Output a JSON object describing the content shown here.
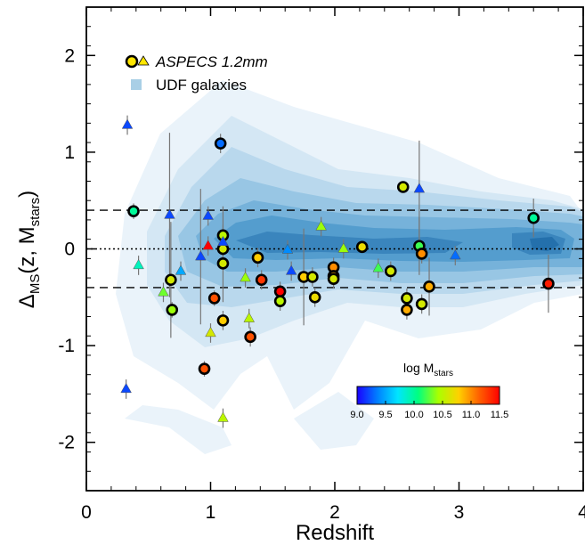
{
  "chart_data": {
    "type": "scatter",
    "xlabel": "Redshift",
    "ylabel_main": "Δ",
    "ylabel_sub": "MS",
    "ylabel_rest": "(z, M",
    "ylabel_sub2": "stars",
    "ylabel_end": ")",
    "xlim": [
      0,
      4
    ],
    "ylim": [
      -2.5,
      2.5
    ],
    "xticks": [
      0,
      1,
      2,
      3,
      4
    ],
    "xtick_labels": [
      "0",
      "1",
      "2",
      "3",
      "4"
    ],
    "yticks": [
      -2,
      -1,
      0,
      1,
      2
    ],
    "ytick_labels": [
      "-2",
      "-1",
      "0",
      "1",
      "2"
    ],
    "hlines": {
      "dotted": [
        0.0
      ],
      "dashed": [
        0.4,
        -0.4
      ]
    },
    "legend": {
      "placement": "top-left",
      "entries": [
        {
          "label": "ASPECS 1.2mm",
          "marker": "circle+triangle"
        },
        {
          "label": "UDF galaxies",
          "marker": "square",
          "color": "#a9cfe6"
        }
      ]
    },
    "colorbar": {
      "title_main": "log M",
      "title_sub": "stars",
      "min": 9.0,
      "max": 11.5,
      "tick_labels": [
        "9.0",
        "9.5",
        "10.0",
        "10.5",
        "11.0",
        "11.5"
      ],
      "colors": [
        "#1a00ff",
        "#0080ff",
        "#00e5ff",
        "#00ff80",
        "#aaff00",
        "#ffd000",
        "#ff6000",
        "#ff0000"
      ]
    },
    "series": [
      {
        "name": "ASPECS 1.2mm",
        "marker": "circle",
        "points": [
          {
            "x": 0.38,
            "y": 0.39,
            "m": 10.0,
            "err": 0.08
          },
          {
            "x": 0.68,
            "y": -0.32,
            "m": 10.6,
            "err": 0.6
          },
          {
            "x": 0.69,
            "y": -0.63,
            "m": 10.4,
            "err": 0.08
          },
          {
            "x": 0.95,
            "y": -1.24,
            "m": 11.2,
            "err": 0.08
          },
          {
            "x": 1.03,
            "y": -0.51,
            "m": 11.2,
            "err": 0.08
          },
          {
            "x": 1.08,
            "y": 1.09,
            "m": 9.3,
            "err": 0.1
          },
          {
            "x": 1.1,
            "y": 0.14,
            "m": 10.5,
            "err": 0.3
          },
          {
            "x": 1.1,
            "y": 0.0,
            "m": 10.6,
            "err": 0.1
          },
          {
            "x": 1.1,
            "y": -0.15,
            "m": 10.6,
            "err": 0.4
          },
          {
            "x": 1.1,
            "y": -0.74,
            "m": 10.8,
            "err": 0.1
          },
          {
            "x": 1.32,
            "y": -0.91,
            "m": 11.2,
            "err": 0.1
          },
          {
            "x": 1.38,
            "y": -0.09,
            "m": 10.8,
            "err": 0.1
          },
          {
            "x": 1.41,
            "y": -0.32,
            "m": 11.3,
            "err": 0.1
          },
          {
            "x": 1.56,
            "y": -0.44,
            "m": 11.5,
            "err": 0.1
          },
          {
            "x": 1.56,
            "y": -0.54,
            "m": 10.5,
            "err": 0.1
          },
          {
            "x": 1.75,
            "y": -0.29,
            "m": 10.8,
            "err": 0.5
          },
          {
            "x": 1.82,
            "y": -0.29,
            "m": 10.6,
            "err": 0.1
          },
          {
            "x": 1.84,
            "y": -0.5,
            "m": 10.7,
            "err": 0.1
          },
          {
            "x": 1.99,
            "y": -0.19,
            "m": 11.0,
            "err": 0.1
          },
          {
            "x": 1.99,
            "y": -0.28,
            "m": 10.9,
            "err": 0.1
          },
          {
            "x": 1.99,
            "y": -0.31,
            "m": 10.6,
            "err": 0.1
          },
          {
            "x": 2.22,
            "y": 0.02,
            "m": 10.7,
            "err": 0.05
          },
          {
            "x": 2.45,
            "y": -0.23,
            "m": 10.6,
            "err": 0.1
          },
          {
            "x": 2.55,
            "y": 0.64,
            "m": 10.6,
            "err": 0.05
          },
          {
            "x": 2.58,
            "y": -0.51,
            "m": 10.6,
            "err": 0.1
          },
          {
            "x": 2.58,
            "y": -0.63,
            "m": 10.9,
            "err": 0.1
          },
          {
            "x": 2.68,
            "y": 0.03,
            "m": 10.2,
            "err": 0.3
          },
          {
            "x": 2.7,
            "y": -0.05,
            "m": 11.0,
            "err": 0.1
          },
          {
            "x": 2.7,
            "y": -0.57,
            "m": 10.6,
            "err": 0.1
          },
          {
            "x": 2.76,
            "y": -0.39,
            "m": 10.9,
            "err": 0.3
          },
          {
            "x": 3.6,
            "y": 0.32,
            "m": 10.0,
            "err": 0.2
          },
          {
            "x": 3.72,
            "y": -0.36,
            "m": 11.4,
            "err": 0.3
          }
        ]
      },
      {
        "name": "",
        "marker": "triangle",
        "points": [
          {
            "x": 0.33,
            "y": 1.28,
            "m": 9.2,
            "err": 0.1
          },
          {
            "x": 0.32,
            "y": -1.45,
            "m": 9.2,
            "err": 0.1
          },
          {
            "x": 0.42,
            "y": -0.17,
            "m": 9.9,
            "err": 0.1
          },
          {
            "x": 0.62,
            "y": -0.45,
            "m": 10.3,
            "err": 0.1
          },
          {
            "x": 0.67,
            "y": 0.35,
            "m": 9.2,
            "err": 0.85
          },
          {
            "x": 0.76,
            "y": -0.23,
            "m": 9.5,
            "err": 0.1
          },
          {
            "x": 0.92,
            "y": -0.08,
            "m": 9.2,
            "err": 0.7
          },
          {
            "x": 0.98,
            "y": 0.34,
            "m": 9.2,
            "err": 0.1
          },
          {
            "x": 0.98,
            "y": 0.03,
            "m": 11.5,
            "err": 0.1
          },
          {
            "x": 1.0,
            "y": -0.87,
            "m": 10.6,
            "err": 0.1
          },
          {
            "x": 1.1,
            "y": -1.75,
            "m": 10.5,
            "err": 0.1
          },
          {
            "x": 1.1,
            "y": 0.07,
            "m": 9.2,
            "err": 0.1
          },
          {
            "x": 1.28,
            "y": -0.3,
            "m": 10.4,
            "err": 0.1
          },
          {
            "x": 1.31,
            "y": -0.72,
            "m": 10.5,
            "err": 0.1
          },
          {
            "x": 1.62,
            "y": -0.01,
            "m": 9.4,
            "err": 0.1
          },
          {
            "x": 1.65,
            "y": -0.23,
            "m": 9.2,
            "err": 0.1
          },
          {
            "x": 1.89,
            "y": 0.23,
            "m": 10.4,
            "err": 0.1
          },
          {
            "x": 2.07,
            "y": 0.0,
            "m": 10.4,
            "err": 0.1
          },
          {
            "x": 2.35,
            "y": -0.2,
            "m": 10.2,
            "err": 0.1
          },
          {
            "x": 2.68,
            "y": 0.62,
            "m": 9.2,
            "err": 0.5
          },
          {
            "x": 2.97,
            "y": -0.07,
            "m": 9.3,
            "err": 0.1
          }
        ]
      }
    ]
  }
}
